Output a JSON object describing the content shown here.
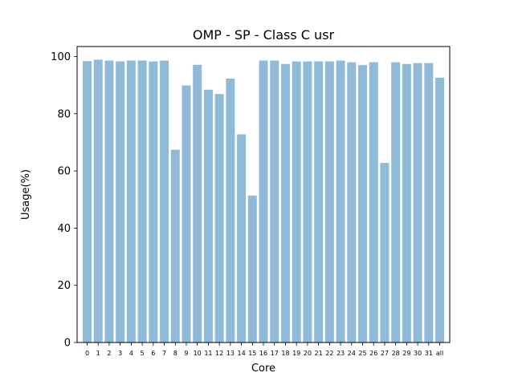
{
  "chart_data": {
    "type": "bar",
    "title": "OMP - SP - Class C usr",
    "xlabel": "Core",
    "ylabel": "Usage(%)",
    "ylim": [
      0,
      103.5
    ],
    "yticks": [
      0,
      20,
      40,
      60,
      80,
      100
    ],
    "categories": [
      "0",
      "1",
      "2",
      "3",
      "4",
      "5",
      "6",
      "7",
      "8",
      "9",
      "10",
      "11",
      "12",
      "13",
      "14",
      "15",
      "16",
      "17",
      "18",
      "19",
      "20",
      "21",
      "22",
      "23",
      "24",
      "25",
      "26",
      "27",
      "28",
      "29",
      "30",
      "31",
      "all"
    ],
    "values": [
      98.4,
      98.9,
      98.6,
      98.3,
      98.6,
      98.6,
      98.3,
      98.6,
      67.4,
      89.9,
      97.1,
      88.4,
      86.9,
      92.3,
      72.8,
      51.4,
      98.6,
      98.6,
      97.4,
      98.3,
      98.3,
      98.3,
      98.3,
      98.6,
      98.0,
      97.0,
      98.0,
      62.8,
      98.0,
      97.4,
      97.7,
      97.7,
      92.6
    ],
    "bar_color": "#8fbbd9",
    "grid": false,
    "legend": "none"
  }
}
